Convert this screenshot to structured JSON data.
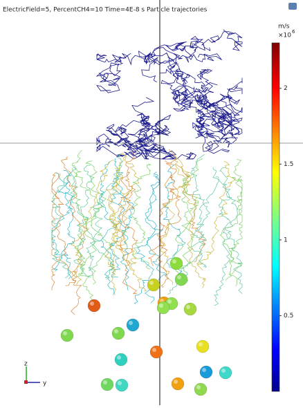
{
  "title": "ElectricField=5, PercentCH4=10 Time=4E-8 s  Particle trajectories",
  "colorbar": {
    "unit": "m/s",
    "multiplier": "×10",
    "exponent": "6",
    "lim": [
      0,
      2.3
    ],
    "ticks": [
      0.5,
      1,
      1.5,
      2
    ]
  },
  "axes": {
    "z": "z",
    "y": "y"
  }
}
